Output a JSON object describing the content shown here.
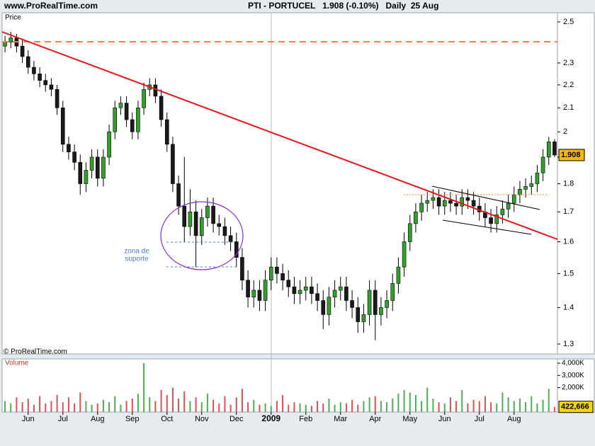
{
  "chart_data": {
    "type": "candlestick",
    "site": "www.ProRealTime.com",
    "title": "PTI - PORTUCEL   1.908 (-0.10%)   Daily  25 Aug",
    "y_label": "Price",
    "copyright": "© ProRealTime.com",
    "annotation": [
      "zona de",
      "suporte"
    ],
    "log_scale": true,
    "up_color": "#33a02c",
    "down_color": "#1a1a1a",
    "categories": [
      null,
      null,
      null,
      null,
      "Jun",
      null,
      null,
      null,
      null,
      null,
      "Jul",
      null,
      null,
      null,
      null,
      null,
      "Aug",
      null,
      null,
      null,
      null,
      null,
      "Sep",
      null,
      null,
      null,
      null,
      null,
      "Oct",
      null,
      null,
      null,
      null,
      null,
      "Nov",
      null,
      null,
      null,
      null,
      null,
      "Dec",
      null,
      null,
      null,
      null,
      null,
      "2009",
      null,
      null,
      null,
      null,
      null,
      "Feb",
      null,
      null,
      null,
      null,
      null,
      "Mar",
      null,
      null,
      null,
      null,
      null,
      "Apr",
      null,
      null,
      null,
      null,
      null,
      "May",
      null,
      null,
      null,
      null,
      null,
      "Jun",
      null,
      null,
      null,
      null,
      null,
      "Jul",
      null,
      null,
      null,
      null,
      null,
      "Aug",
      null,
      null,
      null,
      null,
      null,
      null,
      null
    ],
    "open": [
      2.38,
      2.4,
      2.42,
      2.38,
      2.33,
      2.28,
      2.25,
      2.22,
      2.2,
      2.18,
      2.1,
      1.95,
      1.92,
      1.88,
      1.8,
      1.85,
      1.9,
      1.82,
      1.9,
      2.0,
      2.1,
      2.12,
      2.05,
      2.0,
      2.1,
      2.18,
      2.2,
      2.15,
      2.05,
      1.95,
      1.8,
      1.72,
      1.65,
      1.7,
      1.62,
      1.68,
      1.72,
      1.66,
      1.65,
      1.62,
      1.6,
      1.55,
      1.48,
      1.43,
      1.45,
      1.42,
      1.48,
      1.52,
      1.5,
      1.48,
      1.46,
      1.44,
      1.45,
      1.46,
      1.44,
      1.42,
      1.38,
      1.43,
      1.45,
      1.46,
      1.42,
      1.4,
      1.36,
      1.38,
      1.45,
      1.38,
      1.4,
      1.42,
      1.47,
      1.52,
      1.6,
      1.66,
      1.7,
      1.73,
      1.74,
      1.75,
      1.72,
      1.74,
      1.73,
      1.72,
      1.75,
      1.74,
      1.72,
      1.7,
      1.68,
      1.66,
      1.69,
      1.71,
      1.73,
      1.76,
      1.78,
      1.79,
      1.8,
      1.84,
      1.9,
      1.96
    ],
    "high": [
      2.43,
      2.45,
      2.44,
      2.41,
      2.36,
      2.31,
      2.28,
      2.25,
      2.23,
      2.2,
      2.13,
      1.98,
      1.95,
      1.91,
      1.88,
      1.93,
      1.93,
      1.93,
      2.03,
      2.13,
      2.15,
      2.15,
      2.08,
      2.13,
      2.21,
      2.23,
      2.23,
      2.18,
      2.08,
      1.98,
      1.83,
      1.9,
      1.78,
      1.74,
      1.71,
      1.75,
      1.75,
      1.69,
      1.68,
      1.65,
      1.63,
      1.58,
      1.51,
      1.48,
      1.48,
      1.51,
      1.55,
      1.55,
      1.53,
      1.51,
      1.49,
      1.48,
      1.49,
      1.49,
      1.47,
      1.45,
      1.46,
      1.48,
      1.49,
      1.49,
      1.45,
      1.43,
      1.41,
      1.48,
      1.48,
      1.43,
      1.45,
      1.5,
      1.55,
      1.63,
      1.69,
      1.73,
      1.76,
      1.77,
      1.78,
      1.78,
      1.77,
      1.77,
      1.76,
      1.78,
      1.78,
      1.77,
      1.75,
      1.73,
      1.71,
      1.72,
      1.74,
      1.76,
      1.79,
      1.81,
      1.82,
      1.83,
      1.87,
      1.93,
      1.98,
      1.97
    ],
    "low": [
      2.35,
      2.37,
      2.35,
      2.3,
      2.25,
      2.22,
      2.19,
      2.17,
      2.15,
      2.07,
      1.92,
      1.89,
      1.85,
      1.76,
      1.77,
      1.82,
      1.79,
      1.79,
      1.87,
      1.97,
      2.07,
      2.02,
      1.97,
      1.97,
      2.07,
      2.15,
      2.12,
      2.02,
      1.92,
      1.77,
      1.69,
      1.6,
      1.62,
      1.52,
      1.59,
      1.65,
      1.63,
      1.62,
      1.59,
      1.57,
      1.52,
      1.45,
      1.4,
      1.4,
      1.39,
      1.39,
      1.45,
      1.47,
      1.45,
      1.43,
      1.41,
      1.41,
      1.42,
      1.41,
      1.39,
      1.34,
      1.35,
      1.4,
      1.42,
      1.39,
      1.37,
      1.33,
      1.33,
      1.35,
      1.31,
      1.35,
      1.37,
      1.39,
      1.44,
      1.49,
      1.57,
      1.63,
      1.67,
      1.7,
      1.71,
      1.69,
      1.69,
      1.7,
      1.69,
      1.69,
      1.71,
      1.69,
      1.67,
      1.65,
      1.63,
      1.63,
      1.66,
      1.68,
      1.7,
      1.73,
      1.75,
      1.76,
      1.77,
      1.81,
      1.87,
      1.9
    ],
    "close": [
      2.4,
      2.42,
      2.38,
      2.33,
      2.28,
      2.25,
      2.22,
      2.2,
      2.18,
      2.1,
      1.95,
      1.92,
      1.88,
      1.8,
      1.85,
      1.9,
      1.82,
      1.9,
      2.0,
      2.1,
      2.12,
      2.05,
      2.0,
      2.1,
      2.18,
      2.2,
      2.15,
      2.05,
      1.95,
      1.8,
      1.72,
      1.65,
      1.7,
      1.62,
      1.68,
      1.72,
      1.66,
      1.65,
      1.62,
      1.6,
      1.55,
      1.48,
      1.43,
      1.45,
      1.42,
      1.48,
      1.52,
      1.5,
      1.48,
      1.46,
      1.44,
      1.45,
      1.46,
      1.44,
      1.42,
      1.38,
      1.43,
      1.45,
      1.46,
      1.42,
      1.4,
      1.36,
      1.38,
      1.45,
      1.38,
      1.4,
      1.42,
      1.47,
      1.52,
      1.6,
      1.66,
      1.7,
      1.73,
      1.74,
      1.75,
      1.72,
      1.74,
      1.73,
      1.72,
      1.75,
      1.74,
      1.72,
      1.7,
      1.68,
      1.66,
      1.69,
      1.71,
      1.73,
      1.76,
      1.78,
      1.79,
      1.8,
      1.84,
      1.9,
      1.96,
      1.908
    ],
    "ylim": [
      1.274,
      2.547
    ],
    "yticks": [
      1.3,
      1.4,
      1.5,
      1.6,
      1.7,
      1.8,
      1.9,
      2,
      2.1,
      2.2,
      2.3,
      2.5
    ],
    "volume": {
      "name": "Volume",
      "values": [
        900000,
        700000,
        1200000,
        800000,
        1100000,
        600000,
        1300000,
        700000,
        900000,
        1400000,
        800000,
        1200000,
        700000,
        1600000,
        900000,
        600000,
        700000,
        1000000,
        800000,
        1300000,
        600000,
        900000,
        1100000,
        1500000,
        4000000,
        1200000,
        900000,
        1800000,
        1400000,
        2000000,
        1100000,
        1700000,
        900000,
        1200000,
        800000,
        1500000,
        1000000,
        700000,
        1300000,
        600000,
        1200000,
        1900000,
        800000,
        1000000,
        600000,
        700000,
        500000,
        900000,
        1400000,
        600000,
        800000,
        700000,
        600000,
        500000,
        900000,
        700000,
        1100000,
        600000,
        800000,
        700000,
        1000000,
        600000,
        900000,
        1200000,
        1300000,
        900000,
        800000,
        1100000,
        1500000,
        1800000,
        1600000,
        1400000,
        900000,
        2000000,
        1100000,
        800000,
        700000,
        1200000,
        900000,
        1800000,
        700000,
        1000000,
        900000,
        1300000,
        800000,
        700000,
        1600000,
        1200000,
        900000,
        1100000,
        800000,
        1300000,
        700000,
        1000000,
        1900000,
        422666
      ],
      "last_label": "422,666",
      "ylim": [
        0,
        4350000
      ],
      "yticks": [
        {
          "value": 2000000,
          "label": "2,000K"
        },
        {
          "value": 3000000,
          "label": "3,000K"
        },
        {
          "value": 4000000,
          "label": "4,000K"
        }
      ]
    }
  }
}
